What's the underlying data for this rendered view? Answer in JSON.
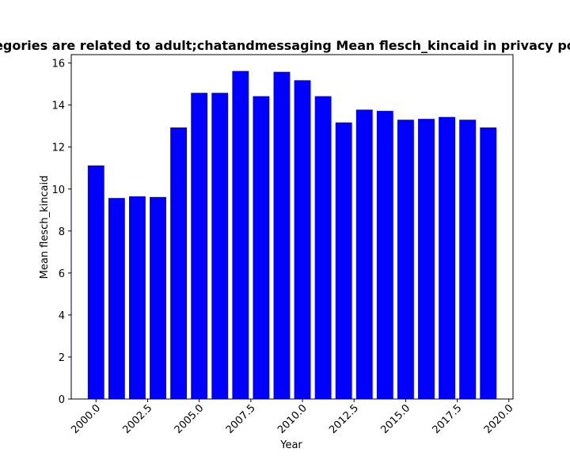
{
  "chart_data": {
    "type": "bar",
    "title": "Categories are related to adult;chatandmessaging Mean flesch_kincaid in privacy policies",
    "xlabel": "Year",
    "ylabel": "Mean flesch_kincaid",
    "bar_color": "#0000ff",
    "x": [
      2000,
      2001,
      2002,
      2003,
      2004,
      2005,
      2006,
      2007,
      2008,
      2009,
      2010,
      2011,
      2012,
      2013,
      2014,
      2015,
      2016,
      2017,
      2018,
      2019
    ],
    "values": [
      11.12,
      9.57,
      9.65,
      9.62,
      12.93,
      14.58,
      14.58,
      15.62,
      14.42,
      15.58,
      15.18,
      14.42,
      13.17,
      13.78,
      13.72,
      13.3,
      13.34,
      13.43,
      13.3,
      12.93
    ],
    "xlim": [
      1998.8,
      2020.2
    ],
    "ylim": [
      0,
      16.4
    ],
    "xticks": [
      "2000.0",
      "2002.5",
      "2005.0",
      "2007.5",
      "2010.0",
      "2012.5",
      "2015.0",
      "2017.5",
      "2020.0"
    ],
    "xtick_values": [
      2000,
      2002.5,
      2005,
      2007.5,
      2010,
      2012.5,
      2015,
      2017.5,
      2020
    ],
    "yticks": [
      "0",
      "2",
      "4",
      "6",
      "8",
      "10",
      "12",
      "14",
      "16"
    ],
    "ytick_values": [
      0,
      2,
      4,
      6,
      8,
      10,
      12,
      14,
      16
    ],
    "grid": false
  }
}
